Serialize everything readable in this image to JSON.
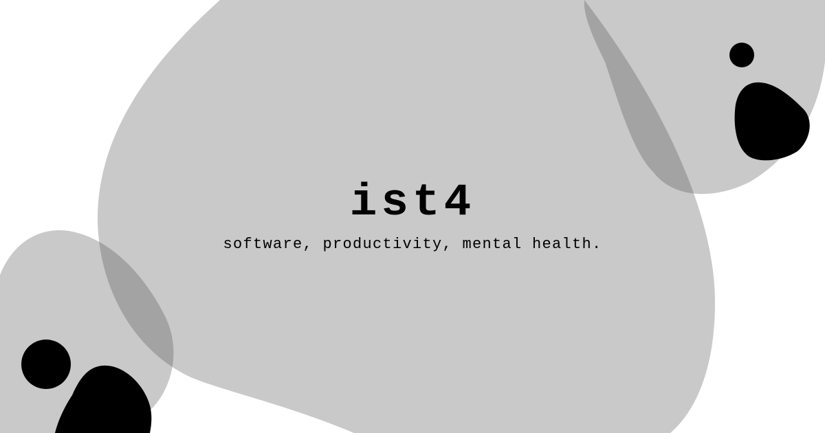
{
  "site": {
    "title": "ist4",
    "tagline": "software, productivity, mental health."
  },
  "colors": {
    "background": "#ffffff",
    "blob": "#c9c9c9",
    "overlap": "#a3a3a3",
    "ink": "#000000"
  },
  "decorations": [
    "koala-blob-top-right",
    "koala-blob-bottom-left",
    "large-center-blob"
  ]
}
